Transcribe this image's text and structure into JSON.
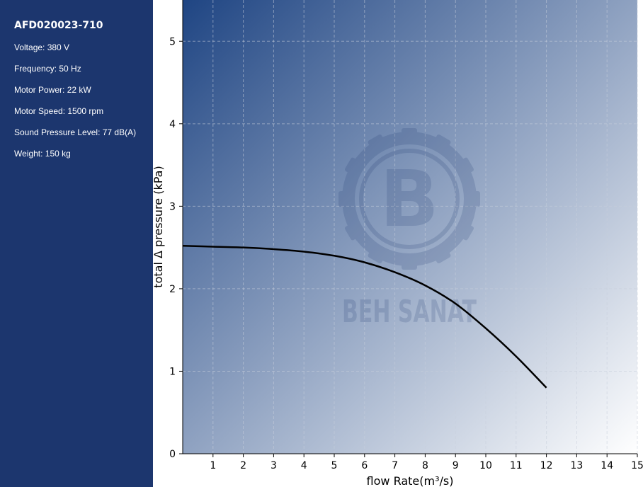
{
  "sidebar": {
    "title": "AFD020023-710",
    "specs": [
      "Voltage: 380 V",
      "Frequency: 50 Hz",
      "Motor Power: 22 kW",
      "Motor Speed: 1500 rpm",
      "Sound Pressure Level: 77 dB(A)",
      "Weight: 150 kg"
    ]
  },
  "watermark": {
    "letter": "B",
    "text": "BEH SANAT"
  },
  "colors": {
    "sidebar_bg": "#1c366e",
    "gradient_dark": "#1f4583",
    "gradient_light": "#ffffff",
    "curve": "#000000",
    "grid": "#c8cfdc"
  },
  "chart_data": {
    "type": "line",
    "xlabel": "flow Rate(m³/s)",
    "ylabel": "total Δ pressure (kPa)",
    "xlim": [
      0,
      15
    ],
    "ylim": [
      0,
      5.5
    ],
    "xticks": [
      1,
      2,
      3,
      4,
      5,
      6,
      7,
      8,
      9,
      10,
      11,
      12,
      13,
      14,
      15
    ],
    "yticks": [
      0,
      1,
      2,
      3,
      4,
      5
    ],
    "grid": true,
    "series": [
      {
        "x": [
          0,
          1,
          2,
          3,
          4,
          5,
          6,
          7,
          8,
          9,
          10,
          11,
          12
        ],
        "y": [
          2.52,
          2.51,
          2.5,
          2.48,
          2.45,
          2.4,
          2.32,
          2.2,
          2.04,
          1.82,
          1.52,
          1.18,
          0.8
        ]
      }
    ]
  }
}
